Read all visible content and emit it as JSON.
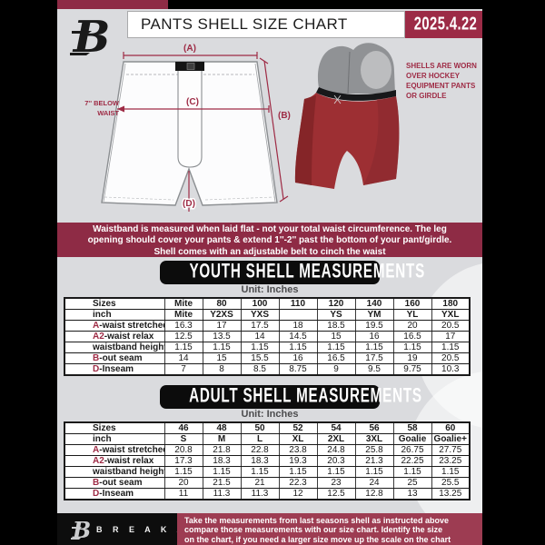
{
  "header": {
    "title": "PANTS SHELL SIZE CHART",
    "date": "2025.4.22"
  },
  "diagram": {
    "label_a": "(A)",
    "label_b": "(B)",
    "label_c": "(C)",
    "label_d": "(D)",
    "waist_note_line1": "7'' BELOW",
    "waist_note_line2": "WAIST",
    "photo_caption_lines": [
      "SHELLS ARE WORN",
      "OVER HOCKEY",
      "EQUIPMENT PANTS",
      "OR GIRDLE"
    ]
  },
  "info_banner": {
    "line1": "Waistband is measured when laid flat - not your total waist circumference. The leg",
    "line2": "opening should cover your pants & extend 1''-2'' past the bottom of your pant/girdle.",
    "line3": "Shell comes with an adjustable belt to cinch the waist"
  },
  "youth": {
    "heading": "YOUTH SHELL MEASUREMENTS",
    "unit": "Unit: Inches"
  },
  "adult": {
    "heading": "ADULT SHELL MEASUREMENTS",
    "unit": "Unit: Inches"
  },
  "youth_table": {
    "rows": [
      {
        "prefix": "",
        "label": "Sizes",
        "bold": true,
        "values": [
          "Mite",
          "80",
          "100",
          "110",
          "120",
          "140",
          "160",
          "180"
        ]
      },
      {
        "prefix": "",
        "label": "inch",
        "bold": true,
        "values": [
          "Mite",
          "Y2XS",
          "YXS",
          "",
          "YS",
          "YM",
          "YL",
          "YXL"
        ]
      },
      {
        "prefix": "A",
        "label": "-waist stretched",
        "values": [
          "16.3",
          "17",
          "17.5",
          "18",
          "18.5",
          "19.5",
          "20",
          "20.5"
        ]
      },
      {
        "prefix": "A2",
        "label": "-waist relax",
        "values": [
          "12.5",
          "13.5",
          "14",
          "14.5",
          "15",
          "16",
          "16.5",
          "17"
        ]
      },
      {
        "prefix": "",
        "label": "waistband height",
        "values": [
          "1.15",
          "1.15",
          "1.15",
          "1.15",
          "1.15",
          "1.15",
          "1.15",
          "1.15"
        ]
      },
      {
        "prefix": "B",
        "label": "-out seam",
        "values": [
          "14",
          "15",
          "15.5",
          "16",
          "16.5",
          "17.5",
          "19",
          "20.5"
        ]
      },
      {
        "prefix": "D",
        "label": "-Inseam",
        "values": [
          "7",
          "8",
          "8.5",
          "8.75",
          "9",
          "9.5",
          "9.75",
          "10.3"
        ]
      }
    ]
  },
  "adult_table": {
    "rows": [
      {
        "prefix": "",
        "label": "Sizes",
        "bold": true,
        "values": [
          "46",
          "48",
          "50",
          "52",
          "54",
          "56",
          "58",
          "60"
        ]
      },
      {
        "prefix": "",
        "label": "inch",
        "bold": true,
        "values": [
          "S",
          "M",
          "L",
          "XL",
          "2XL",
          "3XL",
          "Goalie",
          "Goalie+"
        ]
      },
      {
        "prefix": "A",
        "label": "-waist stretched",
        "values": [
          "20.8",
          "21.8",
          "22.8",
          "23.8",
          "24.8",
          "25.8",
          "26.75",
          "27.75"
        ]
      },
      {
        "prefix": "A2",
        "label": "-waist relax",
        "values": [
          "17.3",
          "18.3",
          "18.3",
          "19.3",
          "20.3",
          "21.3",
          "22.25",
          "23.25"
        ]
      },
      {
        "prefix": "",
        "label": "waistband height",
        "values": [
          "1.15",
          "1.15",
          "1.15",
          "1.15",
          "1.15",
          "1.15",
          "1.15",
          "1.15"
        ]
      },
      {
        "prefix": "B",
        "label": "-out seam",
        "values": [
          "20",
          "21.5",
          "21",
          "22.3",
          "23",
          "24",
          "25",
          "25.5"
        ]
      },
      {
        "prefix": "D",
        "label": "-Inseam",
        "values": [
          "11",
          "11.3",
          "11.3",
          "12",
          "12.5",
          "12.8",
          "13",
          "13.25"
        ]
      }
    ]
  },
  "footer": {
    "brand": "B R E A K A W A Y",
    "note_line1": "Take the measurements from last seasons shell as instructed above",
    "note_line2": "compare those measurements  with our size chart. Identify the size",
    "note_line3": "on the chart, if you need a larger size move up the scale on the chart"
  },
  "colors": {
    "maroon": "#8e2b45",
    "date_maroon": "#9c2b46",
    "footer_maroon": "#9d3c52",
    "accent_red": "#9e2b45",
    "shell_red": "#9d2f33"
  }
}
